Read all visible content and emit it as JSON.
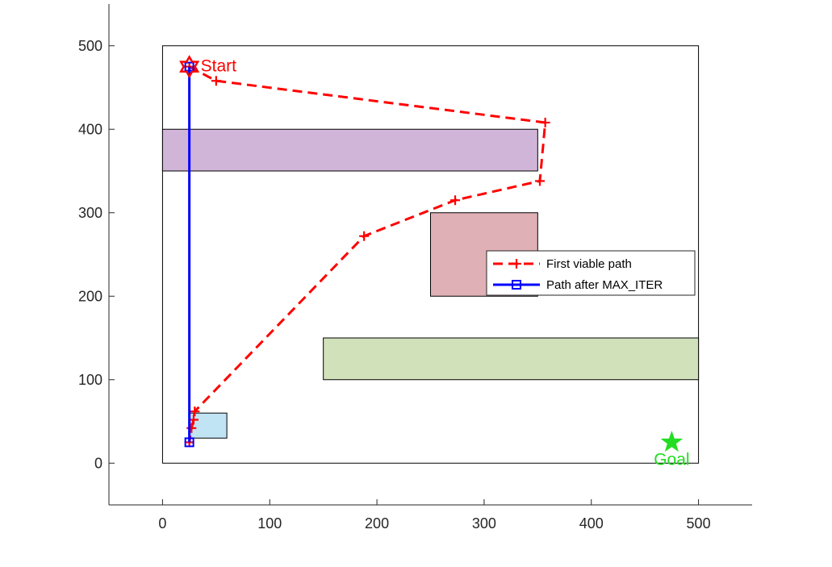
{
  "chart_data": {
    "type": "line",
    "title": "",
    "xlabel": "",
    "ylabel": "",
    "xlim": [
      -50,
      550
    ],
    "ylim": [
      -50,
      550
    ],
    "xticks": [
      0,
      100,
      200,
      300,
      400,
      500
    ],
    "yticks": [
      0,
      100,
      200,
      300,
      400,
      500
    ],
    "grid": false,
    "legend_position": "center-right",
    "boundary": {
      "x": [
        0,
        500
      ],
      "y": [
        0,
        500
      ]
    },
    "obstacles": [
      {
        "name": "obstacle-purple",
        "x": 0,
        "y": 350,
        "w": 350,
        "h": 50,
        "color": "#d1b5d9"
      },
      {
        "name": "obstacle-red",
        "x": 250,
        "y": 200,
        "w": 100,
        "h": 100,
        "color": "#e0b0b7"
      },
      {
        "name": "obstacle-green",
        "x": 150,
        "y": 100,
        "w": 350,
        "h": 50,
        "color": "#d1e2bb"
      },
      {
        "name": "obstacle-blue",
        "x": 25,
        "y": 30,
        "w": 35,
        "h": 30,
        "color": "#c1e4f5"
      }
    ],
    "series": [
      {
        "name": "First viable path",
        "color": "#ff0000",
        "style": "dashed",
        "marker": "plus",
        "x": [
          25,
          50,
          357,
          352,
          273,
          188,
          30,
          29,
          27,
          25
        ],
        "y": [
          475,
          458,
          408,
          338,
          315,
          272,
          62,
          52,
          42,
          25
        ]
      },
      {
        "name": "Path after MAX_ITER",
        "color": "#0000ff",
        "style": "solid",
        "marker": "square",
        "x": [
          25,
          25
        ],
        "y": [
          475,
          25
        ]
      }
    ],
    "annotations": [
      {
        "text": "Start",
        "x": 25,
        "y": 475,
        "color": "#ff0000",
        "marker": "hexagram"
      },
      {
        "text": "Goal",
        "x": 475,
        "y": 25,
        "color": "#22dd22",
        "marker": "pentagram"
      }
    ]
  }
}
